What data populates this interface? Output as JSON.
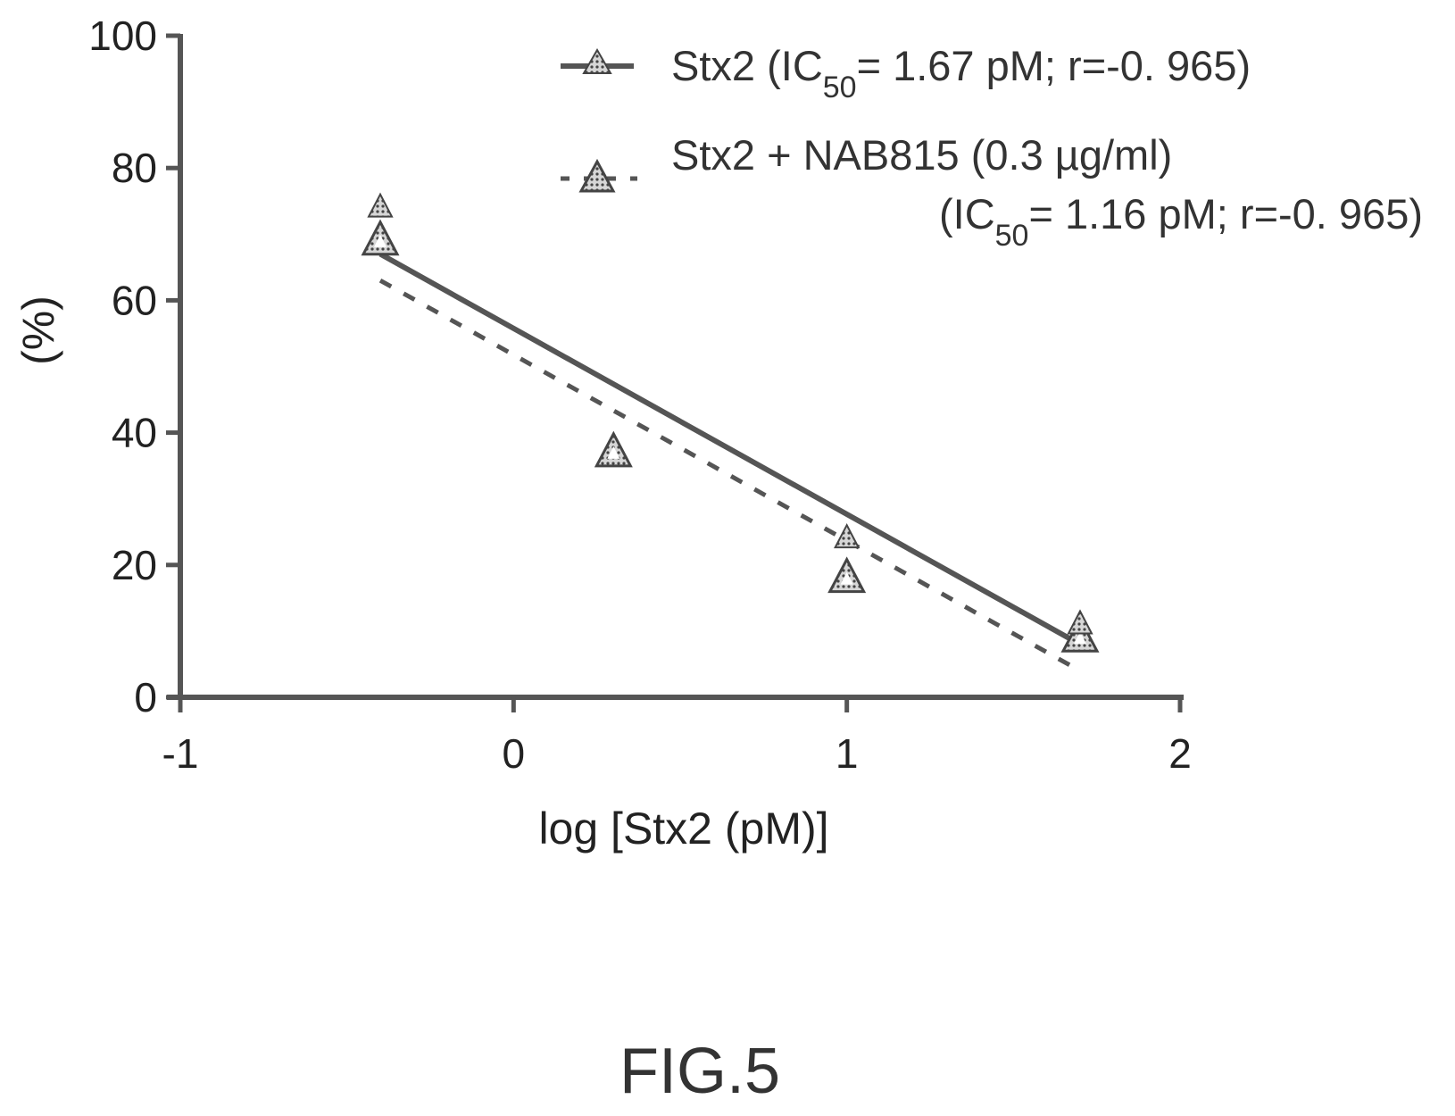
{
  "chart_data": {
    "type": "scatter",
    "xlabel": "log [Stx2 (pM)]",
    "ylabel": "(%)",
    "xlim": [
      -1,
      2
    ],
    "ylim": [
      0,
      100
    ],
    "x_ticks": [
      -1,
      0,
      1,
      2
    ],
    "y_ticks": [
      0,
      20,
      40,
      60,
      80,
      100
    ],
    "x_tick_labels": [
      "-1",
      "0",
      "1",
      "2"
    ],
    "y_tick_labels": [
      "0",
      "20",
      "40",
      "60",
      "80",
      "100"
    ],
    "grid": false,
    "legend_position": "top-right",
    "series": [
      {
        "name": "Stx2",
        "name_stat_open": " (IC",
        "name_stat_sub": "50",
        "name_stat_close": "= 1.67 pM; r=-0. 965)",
        "marker": "filled-triangle",
        "line_style": "solid",
        "x": [
          -0.4,
          1.0,
          1.7
        ],
        "y": [
          74,
          24,
          11
        ],
        "fit": {
          "x": [
            -0.4,
            1.7
          ],
          "y": [
            67,
            8
          ]
        },
        "color": "#555555"
      },
      {
        "name": "Stx2 + NAB815 (0.3 µg/ml)",
        "name_stat_open": "(IC",
        "name_stat_sub": "50",
        "name_stat_close": "= 1.16 pM; r=-0. 965)",
        "marker": "outlined-triangle",
        "line_style": "dashed",
        "x": [
          -0.4,
          0.3,
          1.0,
          1.7
        ],
        "y": [
          69,
          37,
          18,
          9
        ],
        "fit": {
          "x": [
            -0.4,
            1.7
          ],
          "y": [
            63,
            4
          ]
        },
        "color": "#555555"
      }
    ]
  },
  "figure_label": "FIG.5"
}
